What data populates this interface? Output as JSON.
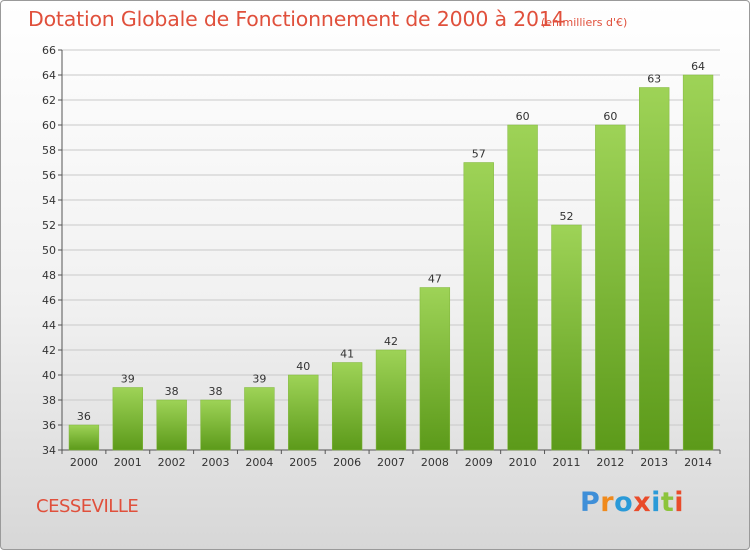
{
  "title": "Dotation Globale de Fonctionnement de 2000 à 2014",
  "subtitle": "(en milliers d'€)",
  "town": "CESSEVILLE",
  "logo": [
    "P",
    "r",
    "o",
    "x",
    "i",
    "t",
    "i"
  ],
  "colors": {
    "title": "#e0503c",
    "bar_top": "#9ed357",
    "bar_bottom": "#5c9a1a"
  },
  "chart_data": {
    "type": "bar",
    "categories": [
      "2000",
      "2001",
      "2002",
      "2003",
      "2004",
      "2005",
      "2006",
      "2007",
      "2008",
      "2009",
      "2010",
      "2011",
      "2012",
      "2013",
      "2014"
    ],
    "values": [
      36,
      39,
      38,
      38,
      39,
      40,
      41,
      42,
      47,
      57,
      60,
      52,
      60,
      63,
      64
    ],
    "title": "Dotation Globale de Fonctionnement de 2000 à 2014",
    "subtitle": "(en milliers d'€)",
    "ylim": [
      34,
      66
    ],
    "yticks": [
      34,
      36,
      38,
      40,
      42,
      44,
      46,
      48,
      50,
      52,
      54,
      56,
      58,
      60,
      62,
      64,
      66
    ],
    "grid": true,
    "data_labels": true
  }
}
